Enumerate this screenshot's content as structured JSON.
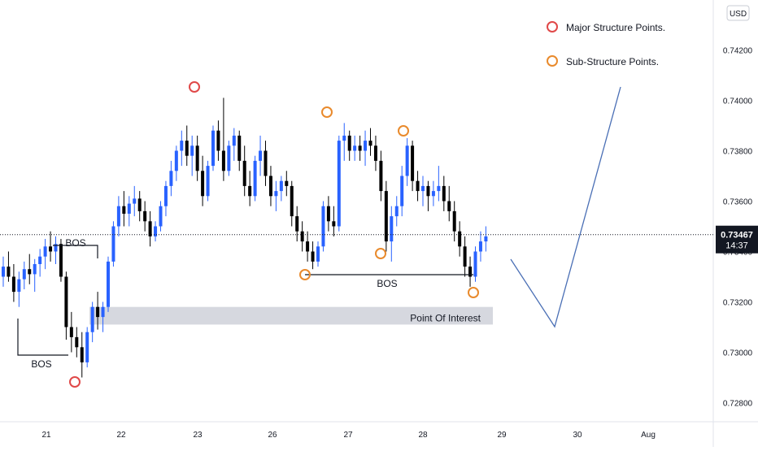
{
  "chart_data": {
    "type": "candlestick",
    "currency": "USD",
    "x_ticks": [
      "21",
      "22",
      "23",
      "26",
      "27",
      "28",
      "29",
      "30",
      "Aug"
    ],
    "y_ticks": [
      "0.74200",
      "0.74000",
      "0.73800",
      "0.73600",
      "0.73400",
      "0.73200",
      "0.73000",
      "0.72800"
    ],
    "y_tick_values": [
      0.742,
      0.74,
      0.738,
      0.736,
      0.734,
      0.732,
      0.73,
      0.728
    ],
    "ylim": [
      0.7272,
      0.7436
    ],
    "last_price": "0.73467",
    "last_price_value": 0.73467,
    "countdown": "14:37",
    "legend": [
      {
        "label": "Major Structure Points.",
        "color": "#e04848"
      },
      {
        "label": "Sub-Structure Points.",
        "color": "#e98a2c"
      }
    ],
    "annotations": {
      "bos_labels": [
        "BOS",
        "BOS",
        "BOS"
      ],
      "zone_label": "Point Of Interest",
      "zone_range": [
        0.7311,
        0.7318
      ]
    },
    "colors": {
      "up": "#2962ff",
      "down": "#000000",
      "projection": "#4a6fb5",
      "zone": "#d1d4dc"
    },
    "candles": [
      [
        0.733,
        0.7338,
        0.7326,
        0.7334
      ],
      [
        0.7334,
        0.734,
        0.7328,
        0.733
      ],
      [
        0.733,
        0.7335,
        0.732,
        0.7324
      ],
      [
        0.7324,
        0.7332,
        0.7318,
        0.7329
      ],
      [
        0.7329,
        0.7336,
        0.7325,
        0.7333
      ],
      [
        0.7333,
        0.7339,
        0.7327,
        0.7331
      ],
      [
        0.7331,
        0.7337,
        0.7324,
        0.7335
      ],
      [
        0.7335,
        0.7341,
        0.733,
        0.7338
      ],
      [
        0.7338,
        0.7345,
        0.7333,
        0.7342
      ],
      [
        0.7342,
        0.7348,
        0.7336,
        0.734
      ],
      [
        0.734,
        0.7346,
        0.7335,
        0.7343
      ],
      [
        0.7343,
        0.7345,
        0.7328,
        0.733
      ],
      [
        0.733,
        0.7332,
        0.7305,
        0.731
      ],
      [
        0.731,
        0.7316,
        0.73,
        0.7306
      ],
      [
        0.7306,
        0.731,
        0.7298,
        0.7302
      ],
      [
        0.7302,
        0.7308,
        0.729,
        0.7296
      ],
      [
        0.7296,
        0.731,
        0.7294,
        0.7308
      ],
      [
        0.7308,
        0.732,
        0.7304,
        0.7318
      ],
      [
        0.7318,
        0.7324,
        0.7309,
        0.7314
      ],
      [
        0.7314,
        0.732,
        0.7308,
        0.7318
      ],
      [
        0.7318,
        0.7338,
        0.7316,
        0.7336
      ],
      [
        0.7336,
        0.7352,
        0.7334,
        0.735
      ],
      [
        0.735,
        0.7362,
        0.7346,
        0.7358
      ],
      [
        0.7358,
        0.7364,
        0.735,
        0.7355
      ],
      [
        0.7355,
        0.7362,
        0.735,
        0.7359
      ],
      [
        0.7359,
        0.7366,
        0.7354,
        0.7361
      ],
      [
        0.7361,
        0.7364,
        0.7352,
        0.7356
      ],
      [
        0.7356,
        0.736,
        0.7348,
        0.7352
      ],
      [
        0.7352,
        0.7356,
        0.7342,
        0.7346
      ],
      [
        0.7346,
        0.7352,
        0.7344,
        0.735
      ],
      [
        0.735,
        0.736,
        0.7348,
        0.7358
      ],
      [
        0.7358,
        0.7368,
        0.7354,
        0.7366
      ],
      [
        0.7366,
        0.7376,
        0.7362,
        0.7372
      ],
      [
        0.7372,
        0.7382,
        0.7368,
        0.738
      ],
      [
        0.738,
        0.7388,
        0.7374,
        0.7384
      ],
      [
        0.7384,
        0.739,
        0.7374,
        0.7378
      ],
      [
        0.7378,
        0.7386,
        0.737,
        0.7382
      ],
      [
        0.7382,
        0.7386,
        0.7368,
        0.7372
      ],
      [
        0.7372,
        0.7378,
        0.7358,
        0.7362
      ],
      [
        0.7362,
        0.7376,
        0.736,
        0.7374
      ],
      [
        0.7374,
        0.739,
        0.7372,
        0.7388
      ],
      [
        0.7388,
        0.7392,
        0.7376,
        0.738
      ],
      [
        0.738,
        0.7401,
        0.7368,
        0.7372
      ],
      [
        0.7372,
        0.7384,
        0.737,
        0.7382
      ],
      [
        0.7382,
        0.7389,
        0.7376,
        0.7386
      ],
      [
        0.7386,
        0.7388,
        0.7372,
        0.7376
      ],
      [
        0.7376,
        0.7382,
        0.7362,
        0.7366
      ],
      [
        0.7366,
        0.7372,
        0.7358,
        0.7362
      ],
      [
        0.7362,
        0.7378,
        0.736,
        0.7376
      ],
      [
        0.7376,
        0.7386,
        0.737,
        0.738
      ],
      [
        0.738,
        0.7384,
        0.7366,
        0.737
      ],
      [
        0.737,
        0.7374,
        0.7358,
        0.7362
      ],
      [
        0.7362,
        0.7368,
        0.7356,
        0.7364
      ],
      [
        0.7364,
        0.737,
        0.736,
        0.7368
      ],
      [
        0.7368,
        0.7372,
        0.7362,
        0.7366
      ],
      [
        0.7366,
        0.7368,
        0.735,
        0.7354
      ],
      [
        0.7354,
        0.7358,
        0.7344,
        0.7348
      ],
      [
        0.7348,
        0.7352,
        0.734,
        0.7344
      ],
      [
        0.7344,
        0.7348,
        0.7336,
        0.734
      ],
      [
        0.734,
        0.7344,
        0.7333,
        0.7336
      ],
      [
        0.7336,
        0.7344,
        0.7334,
        0.7342
      ],
      [
        0.7342,
        0.736,
        0.734,
        0.7358
      ],
      [
        0.7358,
        0.7362,
        0.7348,
        0.7352
      ],
      [
        0.7352,
        0.7358,
        0.7346,
        0.735
      ],
      [
        0.735,
        0.7386,
        0.7348,
        0.7384
      ],
      [
        0.7384,
        0.7391,
        0.7376,
        0.7386
      ],
      [
        0.7386,
        0.7388,
        0.7376,
        0.738
      ],
      [
        0.738,
        0.7386,
        0.7376,
        0.7382
      ],
      [
        0.7382,
        0.7386,
        0.7376,
        0.738
      ],
      [
        0.738,
        0.7388,
        0.7374,
        0.7384
      ],
      [
        0.7384,
        0.7389,
        0.7378,
        0.7382
      ],
      [
        0.7382,
        0.7386,
        0.7372,
        0.7376
      ],
      [
        0.7376,
        0.738,
        0.736,
        0.7364
      ],
      [
        0.7364,
        0.7368,
        0.734,
        0.7344
      ],
      [
        0.7344,
        0.7358,
        0.7336,
        0.7354
      ],
      [
        0.7354,
        0.7362,
        0.735,
        0.7358
      ],
      [
        0.7358,
        0.7374,
        0.7354,
        0.737
      ],
      [
        0.737,
        0.7385,
        0.7366,
        0.7382
      ],
      [
        0.7382,
        0.7384,
        0.7364,
        0.7368
      ],
      [
        0.7368,
        0.7372,
        0.736,
        0.7364
      ],
      [
        0.7364,
        0.737,
        0.7358,
        0.7366
      ],
      [
        0.7366,
        0.7368,
        0.7356,
        0.7362
      ],
      [
        0.7362,
        0.7368,
        0.7358,
        0.7364
      ],
      [
        0.7364,
        0.7374,
        0.736,
        0.7366
      ],
      [
        0.7366,
        0.737,
        0.7356,
        0.736
      ],
      [
        0.736,
        0.7366,
        0.7352,
        0.7356
      ],
      [
        0.7356,
        0.736,
        0.7344,
        0.7348
      ],
      [
        0.7348,
        0.7352,
        0.7338,
        0.7342
      ],
      [
        0.7342,
        0.7346,
        0.733,
        0.7334
      ],
      [
        0.7334,
        0.7338,
        0.7326,
        0.733
      ],
      [
        0.733,
        0.7342,
        0.7328,
        0.734
      ],
      [
        0.734,
        0.7348,
        0.7336,
        0.7344
      ],
      [
        0.7344,
        0.735,
        0.734,
        0.7346
      ]
    ]
  }
}
